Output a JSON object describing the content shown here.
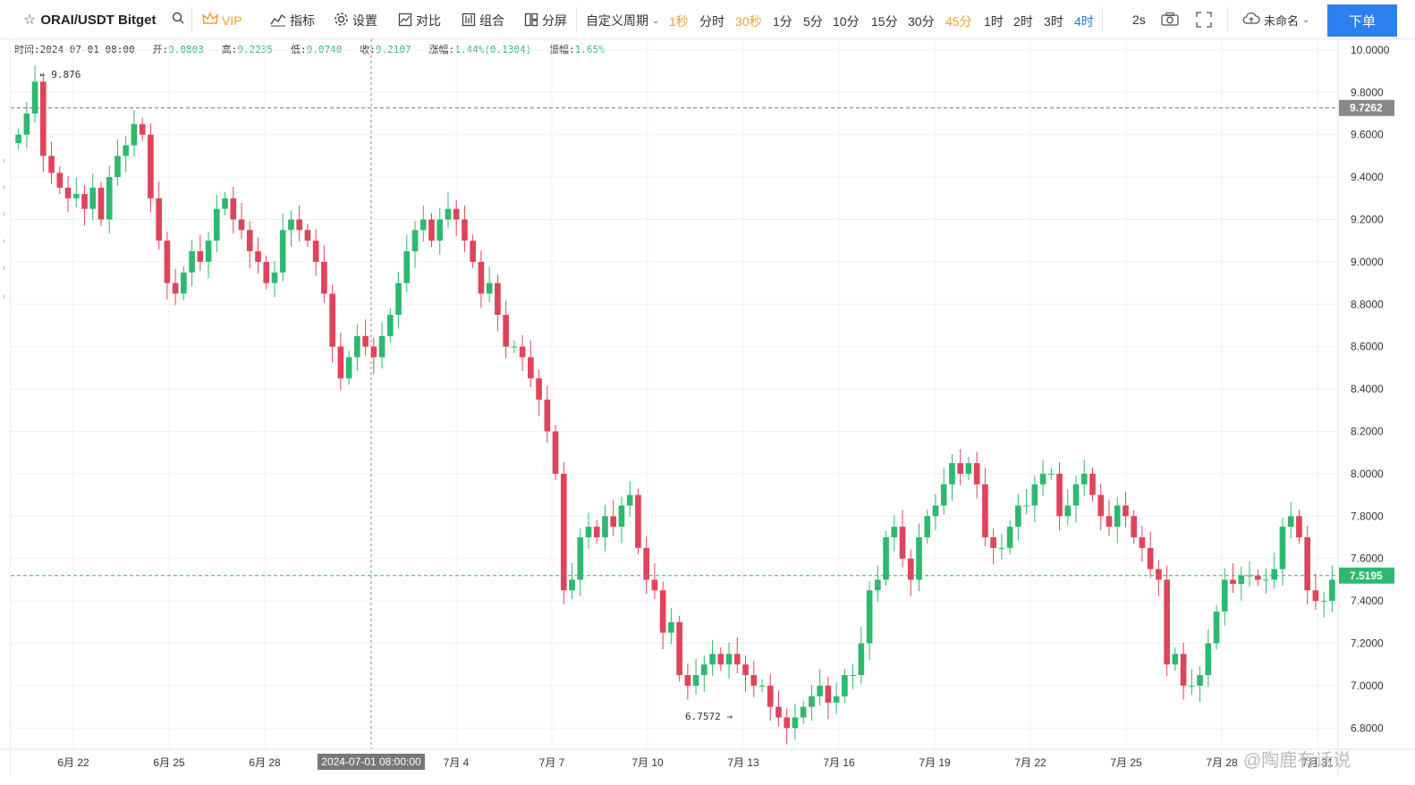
{
  "toolbar": {
    "symbol": "ORAI/USDT Bitget",
    "vip": "VIP",
    "indicators": "指标",
    "settings": "设置",
    "compare": "对比",
    "combine": "组合",
    "split": "分屏",
    "custom_period": "自定义周期",
    "periods": [
      {
        "label": "1秒",
        "style": "orange"
      },
      {
        "label": "分时",
        "style": "normal"
      },
      {
        "label": "30秒",
        "style": "orange"
      },
      {
        "label": "1分",
        "style": "normal"
      },
      {
        "label": "5分",
        "style": "normal"
      },
      {
        "label": "10分",
        "style": "normal"
      },
      {
        "label": "15分",
        "style": "normal"
      },
      {
        "label": "30分",
        "style": "normal"
      },
      {
        "label": "45分",
        "style": "orange"
      },
      {
        "label": "1时",
        "style": "normal"
      },
      {
        "label": "2时",
        "style": "normal"
      },
      {
        "label": "3时",
        "style": "normal"
      },
      {
        "label": "4时",
        "style": "blue"
      }
    ],
    "refresh": "2s",
    "unnamed": "未命名",
    "order": "下单"
  },
  "info_bar": {
    "time_label": "时间:",
    "time": "2024-07-01 08:00",
    "open_label": "开:",
    "open": "9.0803",
    "high_label": "高:",
    "high": "9.2235",
    "low_label": "低:",
    "low": "9.0740",
    "close_label": "收:",
    "close": "9.2107",
    "change_label": "涨幅:",
    "change": "1.44%(0.1304)",
    "amp_label": "振幅:",
    "amp": "1.65%"
  },
  "watermark": "@陶鹿有话说",
  "colors": {
    "up": "#2fb870",
    "down": "#e0445a",
    "grid": "#f0f0f0",
    "accent": "#2d7ff0"
  },
  "chart_data": {
    "type": "candlestick",
    "pair": "ORAI/USDT",
    "interval": "4时",
    "ylim": [
      6.7,
      10.05
    ],
    "y_ticks": [
      "10.0000",
      "9.8000",
      "9.6000",
      "9.4000",
      "9.2000",
      "9.0000",
      "8.8000",
      "8.6000",
      "8.4000",
      "8.2000",
      "8.0000",
      "7.8000",
      "7.6000",
      "7.4000",
      "7.2000",
      "7.0000",
      "6.8000"
    ],
    "x_ticks": [
      "6月 22",
      "6月 25",
      "6月 28",
      "7月 4",
      "7月 7",
      "7月 10",
      "7月 13",
      "7月 16",
      "7月 19",
      "7月 22",
      "7月 25",
      "7月 28",
      "7月 31"
    ],
    "crosshair_label": "2024-07-01 08:00:00",
    "annotations": {
      "high": "9.876",
      "low": "6.7572"
    },
    "price_lines": [
      {
        "value": "9.7262",
        "style": "gray"
      },
      {
        "value": "7.5195",
        "style": "green"
      }
    ],
    "closes": [
      9.6,
      9.7,
      9.85,
      9.5,
      9.42,
      9.35,
      9.3,
      9.32,
      9.25,
      9.35,
      9.2,
      9.4,
      9.5,
      9.55,
      9.65,
      9.6,
      9.3,
      9.1,
      8.9,
      8.85,
      8.95,
      9.05,
      9.0,
      9.1,
      9.25,
      9.3,
      9.2,
      9.15,
      9.05,
      9.0,
      8.9,
      8.95,
      9.15,
      9.2,
      9.15,
      9.1,
      9.0,
      8.85,
      8.6,
      8.45,
      8.55,
      8.65,
      8.6,
      8.55,
      8.65,
      8.75,
      8.9,
      9.05,
      9.15,
      9.2,
      9.1,
      9.2,
      9.25,
      9.2,
      9.1,
      9.0,
      8.85,
      8.9,
      8.75,
      8.6,
      8.6,
      8.55,
      8.45,
      8.35,
      8.2,
      8.0,
      7.45,
      7.5,
      7.7,
      7.75,
      7.7,
      7.8,
      7.75,
      7.85,
      7.9,
      7.65,
      7.5,
      7.45,
      7.25,
      7.3,
      7.05,
      7.0,
      7.05,
      7.1,
      7.15,
      7.1,
      7.15,
      7.1,
      7.05,
      7.0,
      7.0,
      6.9,
      6.85,
      6.8,
      6.85,
      6.9,
      6.95,
      7.0,
      6.92,
      6.95,
      7.05,
      7.05,
      7.2,
      7.45,
      7.5,
      7.7,
      7.75,
      7.6,
      7.5,
      7.7,
      7.8,
      7.85,
      7.95,
      8.05,
      8.0,
      8.05,
      7.95,
      7.7,
      7.65,
      7.65,
      7.75,
      7.85,
      7.85,
      7.95,
      8.0,
      8.0,
      7.8,
      7.85,
      7.95,
      8.0,
      7.9,
      7.8,
      7.75,
      7.85,
      7.8,
      7.7,
      7.65,
      7.55,
      7.5,
      7.1,
      7.15,
      7.0,
      7.0,
      7.05,
      7.2,
      7.35,
      7.5,
      7.48,
      7.52,
      7.52,
      7.5,
      7.5,
      7.55,
      7.75,
      7.8,
      7.7,
      7.45,
      7.4,
      7.4,
      7.5
    ]
  }
}
